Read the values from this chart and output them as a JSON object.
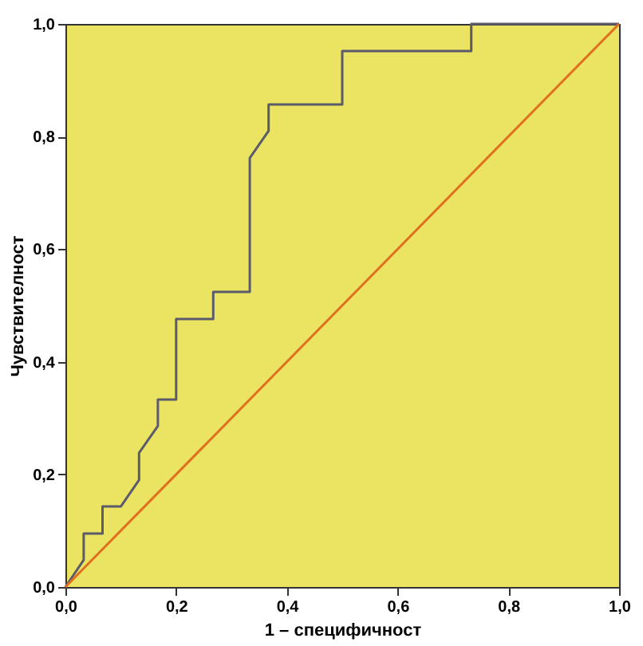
{
  "chart_data": {
    "type": "line",
    "xlabel": "1 – специфичност",
    "ylabel": "Чувствителност",
    "xlim": [
      0,
      1
    ],
    "ylim": [
      0,
      1
    ],
    "xticks": [
      {
        "value": 0,
        "label": "0,0"
      },
      {
        "value": 0.2,
        "label": "0,2"
      },
      {
        "value": 0.4,
        "label": "0,4"
      },
      {
        "value": 0.6,
        "label": "0,6"
      },
      {
        "value": 0.8,
        "label": "0,8"
      },
      {
        "value": 1,
        "label": "1,0"
      }
    ],
    "yticks": [
      {
        "value": 0,
        "label": "0,0"
      },
      {
        "value": 0.2,
        "label": "0,2"
      },
      {
        "value": 0.4,
        "label": "0,4"
      },
      {
        "value": 0.6,
        "label": "0,6"
      },
      {
        "value": 0.8,
        "label": "0,8"
      },
      {
        "value": 1,
        "label": "1,0"
      }
    ],
    "grid": false,
    "legend": false,
    "marker": "none",
    "line_style": "solid",
    "series": [
      {
        "color": "#5b5b6b",
        "x": [
          0,
          0.033,
          0.033,
          0.067,
          0.067,
          0.1,
          0.133,
          0.133,
          0.167,
          0.167,
          0.2,
          0.2,
          0.267,
          0.267,
          0.333,
          0.333,
          0.367,
          0.367,
          0.5,
          0.5,
          0.733,
          0.733,
          1
        ],
        "values": [
          0,
          0.048,
          0.095,
          0.095,
          0.143,
          0.143,
          0.19,
          0.238,
          0.286,
          0.333,
          0.333,
          0.476,
          0.476,
          0.524,
          0.524,
          0.762,
          0.81,
          0.857,
          0.857,
          0.952,
          0.952,
          1,
          1
        ]
      },
      {
        "color": "#e0701e",
        "x": [
          0,
          1
        ],
        "values": [
          0,
          1
        ]
      }
    ]
  }
}
